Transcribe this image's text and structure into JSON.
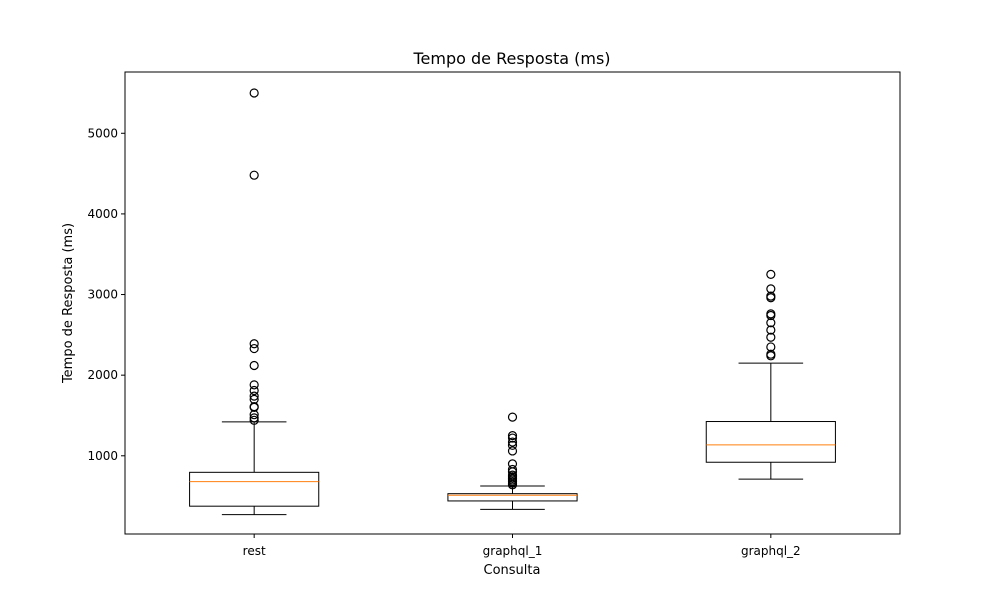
{
  "chart_data": {
    "type": "box",
    "title": "Tempo de Resposta (ms)",
    "xlabel": "Consulta",
    "ylabel": "Tempo de Resposta (ms)",
    "ylim": [
      30,
      5760
    ],
    "yticks": [
      1000,
      2000,
      3000,
      4000,
      5000
    ],
    "grid": false,
    "colors": {
      "box": "#000000",
      "median": "#ff7f0e",
      "flier": "#000000",
      "background": "#ffffff"
    },
    "categories": [
      "rest",
      "graphql_1",
      "graphql_2"
    ],
    "series": [
      {
        "category": "rest",
        "whisker_low": 270,
        "q1": 375,
        "median": 680,
        "q3": 795,
        "whisker_high": 1420,
        "outliers": [
          1440,
          1470,
          1510,
          1600,
          1610,
          1700,
          1740,
          1810,
          1880,
          2120,
          2330,
          2390,
          4480,
          5500
        ]
      },
      {
        "category": "graphql_1",
        "whisker_low": 335,
        "q1": 440,
        "median": 510,
        "q3": 530,
        "whisker_high": 625,
        "outliers": [
          640,
          660,
          680,
          700,
          720,
          740,
          760,
          800,
          830,
          900,
          1060,
          1130,
          1170,
          1220,
          1250,
          1480
        ]
      },
      {
        "category": "graphql_2",
        "whisker_low": 710,
        "q1": 920,
        "median": 1135,
        "q3": 1425,
        "whisker_high": 2150,
        "outliers": [
          2240,
          2260,
          2350,
          2470,
          2560,
          2650,
          2740,
          2760,
          2960,
          2980,
          3070,
          3250
        ]
      }
    ]
  }
}
